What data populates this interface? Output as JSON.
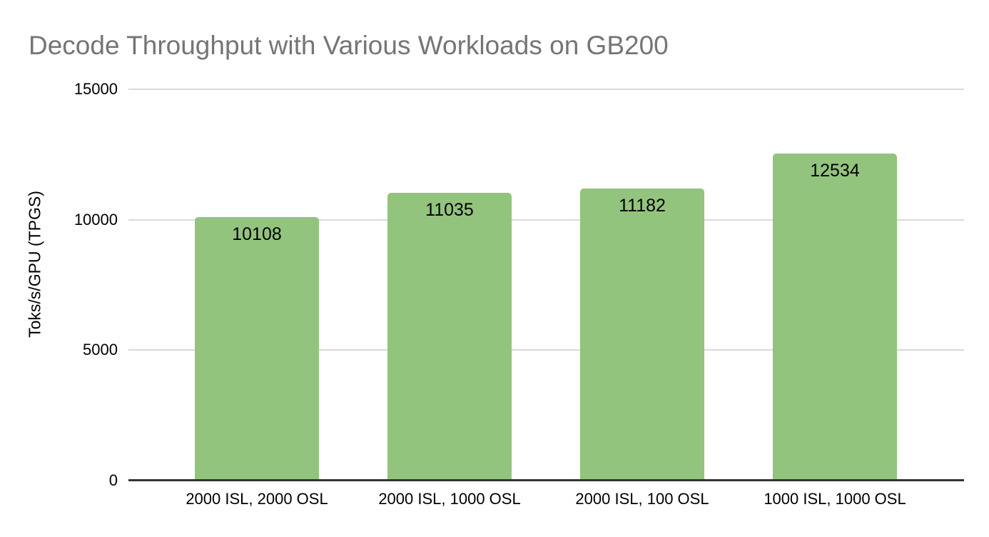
{
  "chart_data": {
    "type": "bar",
    "title": "Decode Throughput with Various Workloads on GB200",
    "xlabel": "",
    "ylabel": "Toks/s/GPU (TPGS)",
    "categories": [
      "2000 ISL, 2000 OSL",
      "2000 ISL, 1000 OSL",
      "2000 ISL, 100 OSL",
      "1000 ISL, 1000 OSL"
    ],
    "values": [
      10108,
      11035,
      11182,
      12534
    ],
    "ylim": [
      0,
      15000
    ],
    "yticks": [
      0,
      5000,
      10000,
      15000
    ],
    "grid": true,
    "legend": "none",
    "background_color": "#ffffff",
    "bar_color": "#93c47d",
    "data_label_color": "#000000",
    "title_color": "#757575",
    "axis_text_color": "#000000",
    "gridline_color": "#d9d9d9",
    "axis_line_color": "#333333"
  }
}
